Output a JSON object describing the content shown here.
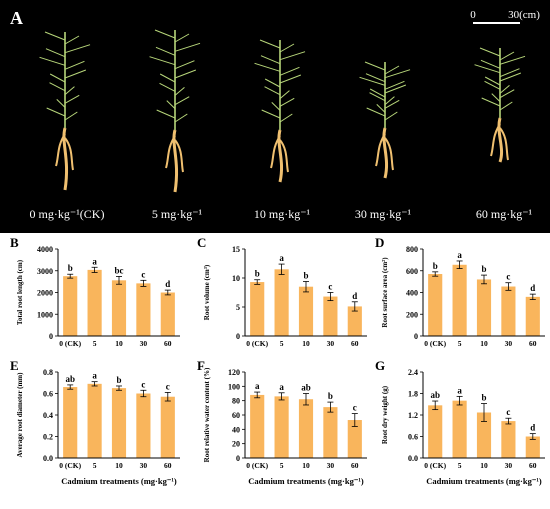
{
  "photo": {
    "panel_label": "A",
    "scale_bar": {
      "start": "0",
      "end": "30(cm)"
    },
    "treatments": [
      "0 mg·kg⁻¹(CK)",
      "5 mg·kg⁻¹",
      "10 mg·kg⁻¹",
      "30 mg·kg⁻¹",
      "60 mg·kg⁻¹"
    ]
  },
  "colors": {
    "bar": "#f9b55c",
    "axis": "#000000",
    "photo_bg": "#000000",
    "plant_green": "#b7d67a",
    "root": "#f0c070"
  },
  "xlabel_shared": "Cadmium treatments (mg·kg⁻¹)",
  "chart_data": [
    {
      "type": "bar",
      "panel": "B",
      "ylabel": "Total root length (cm)",
      "categories": [
        "0 (CK)",
        "5",
        "10",
        "30",
        "60"
      ],
      "values": [
        2750,
        3040,
        2560,
        2420,
        2000
      ],
      "errors": [
        90,
        120,
        180,
        140,
        110
      ],
      "letters": [
        "b",
        "a",
        "bc",
        "c",
        "d"
      ],
      "ylim": [
        0,
        4000
      ],
      "yticks": [
        0,
        1000,
        2000,
        3000,
        4000
      ],
      "show_xlabel": false
    },
    {
      "type": "bar",
      "panel": "C",
      "ylabel": "Root volume (cm³)",
      "categories": [
        "0 (CK)",
        "5",
        "10",
        "30",
        "60"
      ],
      "values": [
        9.3,
        11.5,
        8.5,
        6.8,
        5.1
      ],
      "errors": [
        0.4,
        0.9,
        0.9,
        0.7,
        0.8
      ],
      "letters": [
        "b",
        "a",
        "b",
        "c",
        "d"
      ],
      "ylim": [
        0,
        15
      ],
      "yticks": [
        0,
        5,
        10,
        15
      ],
      "show_xlabel": false
    },
    {
      "type": "bar",
      "panel": "D",
      "ylabel": "Root surface area (cm²)",
      "categories": [
        "0 (CK)",
        "5",
        "10",
        "30",
        "60"
      ],
      "values": [
        570,
        655,
        520,
        455,
        360
      ],
      "errors": [
        20,
        35,
        40,
        35,
        25
      ],
      "letters": [
        "b",
        "a",
        "b",
        "c",
        "d"
      ],
      "ylim": [
        0,
        800
      ],
      "yticks": [
        0,
        200,
        400,
        600,
        800
      ],
      "show_xlabel": false
    },
    {
      "type": "bar",
      "panel": "E",
      "ylabel": "Average root diameter (mm)",
      "categories": [
        "0 (CK)",
        "5",
        "10",
        "30",
        "60"
      ],
      "values": [
        0.66,
        0.69,
        0.65,
        0.6,
        0.57
      ],
      "errors": [
        0.02,
        0.02,
        0.02,
        0.03,
        0.04
      ],
      "letters": [
        "ab",
        "a",
        "b",
        "c",
        "c"
      ],
      "ylim": [
        0,
        0.8
      ],
      "yticks": [
        0.0,
        0.2,
        0.4,
        0.6,
        0.8
      ],
      "show_xlabel": true
    },
    {
      "type": "bar",
      "panel": "F",
      "ylabel": "Root relative water content (%)",
      "categories": [
        "0 (CK)",
        "5",
        "10",
        "30",
        "60"
      ],
      "values": [
        88,
        86,
        82,
        71,
        53
      ],
      "errors": [
        4,
        5,
        8,
        7,
        9
      ],
      "letters": [
        "a",
        "a",
        "ab",
        "b",
        "c"
      ],
      "ylim": [
        0,
        120
      ],
      "yticks": [
        0,
        20,
        40,
        60,
        80,
        100,
        120
      ],
      "show_xlabel": true
    },
    {
      "type": "bar",
      "panel": "G",
      "ylabel": "Root dry weight (g)",
      "categories": [
        "0 (CK)",
        "5",
        "10",
        "30",
        "60"
      ],
      "values": [
        1.47,
        1.6,
        1.27,
        1.03,
        0.6
      ],
      "errors": [
        0.12,
        0.12,
        0.25,
        0.08,
        0.08
      ],
      "letters": [
        "ab",
        "a",
        "b",
        "c",
        "d"
      ],
      "ylim": [
        0,
        2.4
      ],
      "yticks": [
        0.0,
        0.6,
        1.2,
        1.8,
        2.4
      ],
      "show_xlabel": true
    }
  ]
}
